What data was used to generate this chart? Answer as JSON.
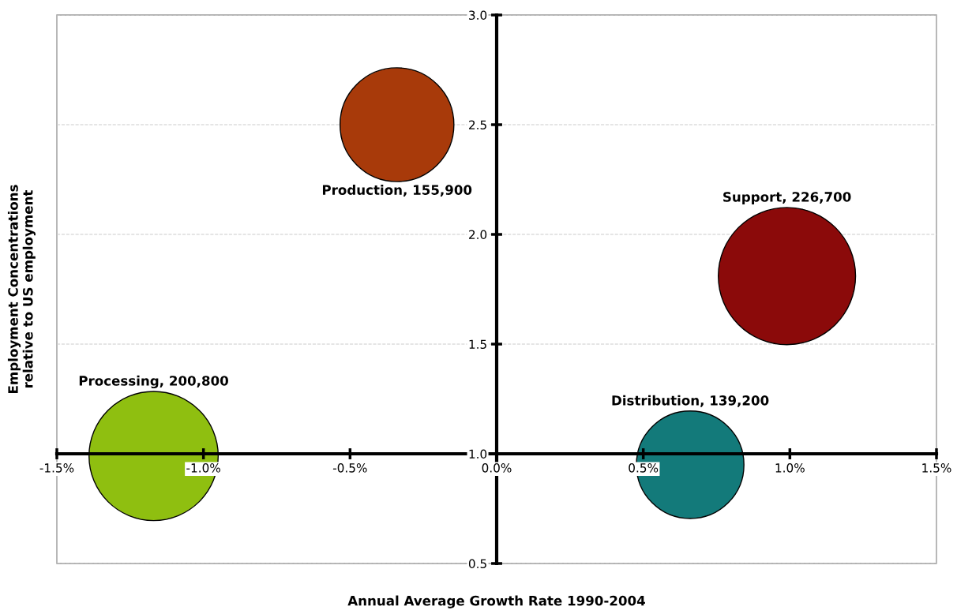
{
  "chart_data": {
    "type": "bubble",
    "xlabel": "Annual Average Growth Rate 1990-2004",
    "ylabel": "Employment Concentrations\nrelative to US employment",
    "series": [
      {
        "name": "Processing, 200,800",
        "color": "#8fbf10",
        "x": [
          -1.17
        ],
        "values": [
          0.99
        ],
        "sizes": [
          0.886
        ]
      },
      {
        "name": "Production, 155,900",
        "color": "#a83a0a",
        "x": [
          -0.34
        ],
        "values": [
          2.5
        ],
        "sizes": [
          0.688
        ]
      },
      {
        "name": "Support, 226,700",
        "color": "#8b0a0a",
        "x": [
          0.99
        ],
        "values": [
          1.81
        ],
        "sizes": [
          1
        ]
      },
      {
        "name": "Distribution, 139,200",
        "color": "#137a7a",
        "x": [
          0.66
        ],
        "values": [
          0.95
        ],
        "sizes": [
          0.614
        ]
      }
    ],
    "xlim": [
      -1.5,
      1.5
    ],
    "xticks": [
      {
        "value": -1.5,
        "label": "-1.5%"
      },
      {
        "value": -1.0,
        "label": "-1.0%"
      },
      {
        "value": -0.5,
        "label": "-0.5%"
      },
      {
        "value": 0,
        "label": "0.0%"
      },
      {
        "value": 0.5,
        "label": "0.5%"
      },
      {
        "value": 1.0,
        "label": "1.0%"
      },
      {
        "value": 1.5,
        "label": "1.5%"
      }
    ],
    "ylim": [
      0.5,
      3.0
    ],
    "yticks": [
      {
        "value": 0.5,
        "label": "0.5"
      },
      {
        "value": 1,
        "label": "1.0"
      },
      {
        "value": 1.5,
        "label": "1.5"
      },
      {
        "value": 2,
        "label": "2.0"
      },
      {
        "value": 2.5,
        "label": "2.5"
      },
      {
        "value": 3,
        "label": "3.0"
      }
    ],
    "grid": "y",
    "legend": false
  }
}
